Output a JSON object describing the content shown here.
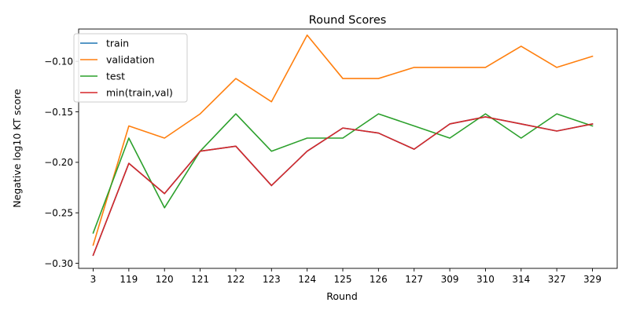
{
  "chart_data": {
    "type": "line",
    "title": "Round Scores",
    "xlabel": "Round",
    "ylabel": "Negative log10 KT score",
    "categories": [
      "3",
      "119",
      "120",
      "121",
      "122",
      "123",
      "124",
      "125",
      "126",
      "127",
      "309",
      "310",
      "314",
      "327",
      "329"
    ],
    "ylim": [
      -0.305,
      -0.068
    ],
    "yticks": [
      -0.3,
      -0.25,
      -0.2,
      -0.15,
      -0.1
    ],
    "ytick_labels": [
      "−0.30",
      "−0.25",
      "−0.20",
      "−0.15",
      "−0.10"
    ],
    "grid": false,
    "legend_position": "top-left",
    "series": [
      {
        "name": "train",
        "color": "#1f77b4",
        "values": [
          -0.292,
          -0.201,
          -0.231,
          -0.189,
          -0.184,
          -0.223,
          -0.189,
          -0.166,
          -0.171,
          -0.187,
          -0.162,
          -0.155,
          -0.162,
          -0.169,
          -0.162
        ]
      },
      {
        "name": "validation",
        "color": "#ff7f0e",
        "values": [
          -0.282,
          -0.164,
          -0.176,
          -0.152,
          -0.117,
          -0.14,
          -0.074,
          -0.117,
          -0.117,
          -0.106,
          -0.106,
          -0.106,
          -0.085,
          -0.106,
          -0.095
        ]
      },
      {
        "name": "test",
        "color": "#2ca02c",
        "values": [
          -0.27,
          -0.176,
          -0.245,
          -0.189,
          -0.152,
          -0.189,
          -0.176,
          -0.176,
          -0.152,
          -0.164,
          -0.176,
          -0.152,
          -0.176,
          -0.152,
          -0.164
        ]
      },
      {
        "name": "min(train,val)",
        "color": "#d62728",
        "values": [
          -0.292,
          -0.201,
          -0.231,
          -0.189,
          -0.184,
          -0.223,
          -0.189,
          -0.166,
          -0.171,
          -0.187,
          -0.162,
          -0.155,
          -0.162,
          -0.169,
          -0.162
        ]
      }
    ]
  }
}
